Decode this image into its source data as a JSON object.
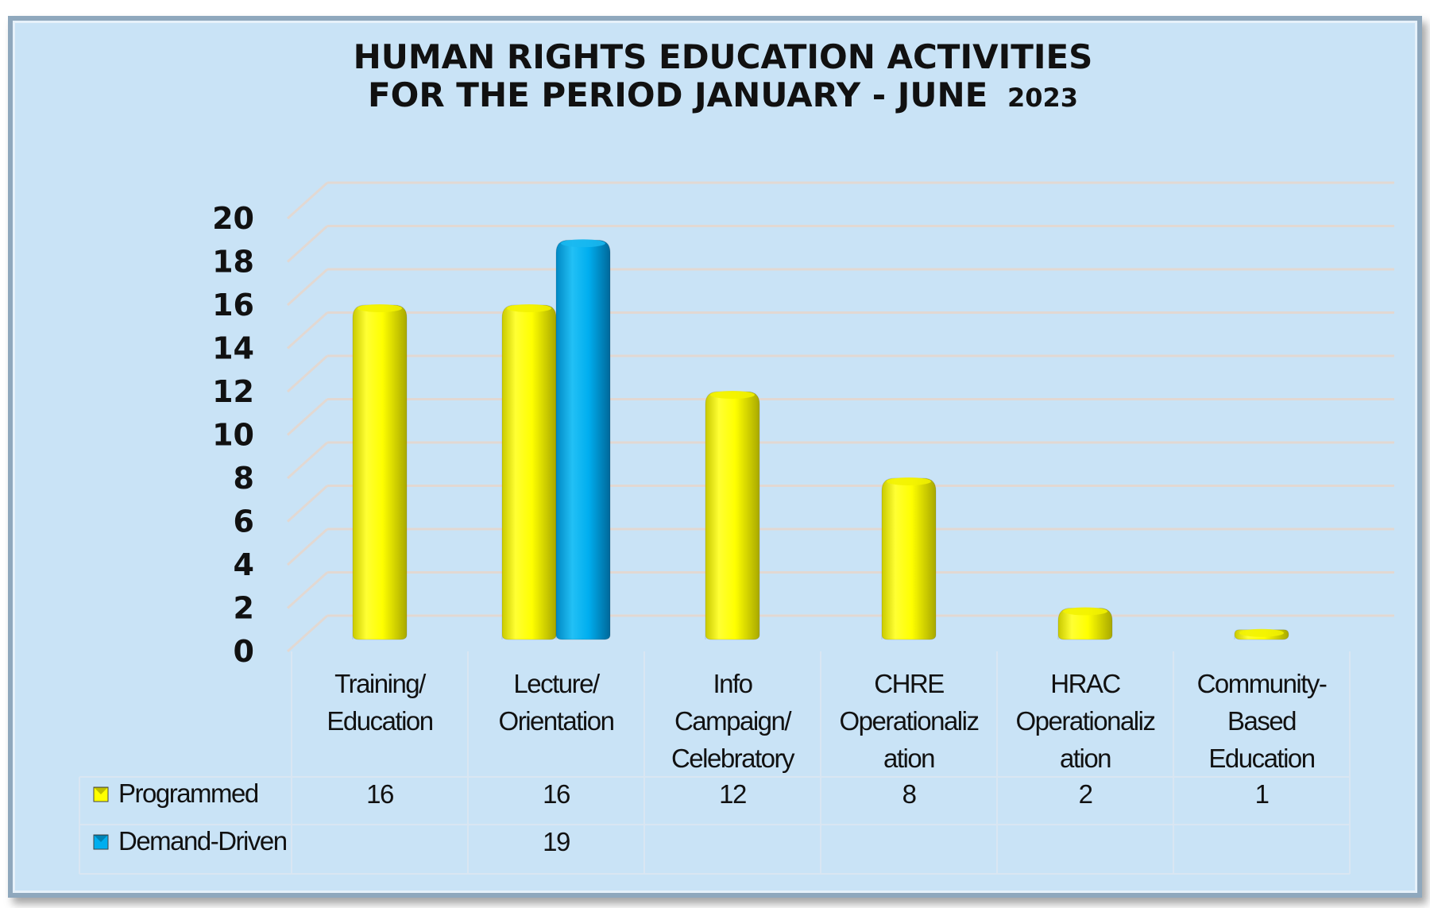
{
  "chart_data": {
    "type": "bar",
    "title_line1": "HUMAN RIGHTS EDUCATION ACTIVITIES",
    "title_line2": "FOR THE PERIOD JANUARY - JUNE",
    "title_year": "2023",
    "categories": [
      [
        "Training/",
        "Education"
      ],
      [
        "Lecture/",
        "Orientation"
      ],
      [
        "Info",
        "Campaign/",
        "Celebratory"
      ],
      [
        "CHRE",
        "Operationaliz",
        "ation"
      ],
      [
        "HRAC",
        "Operationaliz",
        "ation"
      ],
      [
        "Community-",
        "Based",
        "Education"
      ]
    ],
    "series": [
      {
        "name": "Programmed",
        "color": "#ffff00",
        "values": [
          16,
          16,
          12,
          8,
          2,
          1
        ]
      },
      {
        "name": "Demand-Driven",
        "color": "#00aeef",
        "values": [
          null,
          19,
          null,
          null,
          null,
          null
        ]
      }
    ],
    "ylim": [
      0,
      20
    ],
    "yticks": [
      0,
      2,
      4,
      6,
      8,
      10,
      12,
      14,
      16,
      18,
      20
    ],
    "grid": true,
    "legend": "data-table"
  }
}
